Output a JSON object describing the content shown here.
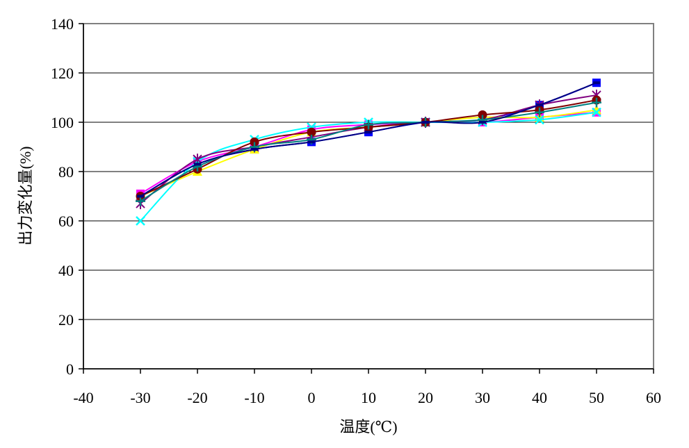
{
  "chart_data": {
    "type": "line",
    "title": "",
    "xlabel": "温度(℃)",
    "ylabel": "出力変化量(%)",
    "xlim": [
      -40,
      60
    ],
    "ylim": [
      0,
      140
    ],
    "xticks": [
      "-40",
      "-30",
      "-20",
      "-10",
      "0",
      "10",
      "20",
      "30",
      "40",
      "50",
      "60"
    ],
    "yticks": [
      "0",
      "20",
      "40",
      "60",
      "80",
      "100",
      "120",
      "140"
    ],
    "grid": "horizontal",
    "legend": "none",
    "x": [
      -30,
      -20,
      -10,
      0,
      10,
      20,
      30,
      40,
      50
    ],
    "series": [
      {
        "color": "#0000ff",
        "marker": "square",
        "values": [
          70,
          83,
          89,
          92,
          96,
          100,
          101,
          107,
          116
        ]
      },
      {
        "color": "#ff00ff",
        "marker": "square",
        "values": [
          71,
          84,
          90,
          97,
          99,
          100,
          100,
          102,
          104
        ]
      },
      {
        "color": "#ffff00",
        "marker": "triangle",
        "values": [
          70,
          80,
          89,
          96,
          98,
          100,
          102,
          102,
          105
        ]
      },
      {
        "color": "#00ffff",
        "marker": "x",
        "values": [
          60,
          84,
          93,
          98,
          100,
          100,
          100,
          101,
          104
        ]
      },
      {
        "color": "#800080",
        "marker": "star",
        "values": [
          67,
          85,
          90,
          94,
          98,
          100,
          101,
          107,
          111
        ]
      },
      {
        "color": "#800000",
        "marker": "circle",
        "values": [
          70,
          81,
          92,
          96,
          98,
          100,
          103,
          105,
          109
        ]
      },
      {
        "color": "#008080",
        "marker": "plus",
        "values": [
          68,
          82,
          90,
          93,
          99,
          100,
          101,
          104,
          108
        ]
      },
      {
        "color": "#000080",
        "marker": "dash",
        "values": [
          70,
          83,
          89,
          92,
          96,
          100,
          100,
          107,
          116
        ]
      }
    ]
  }
}
